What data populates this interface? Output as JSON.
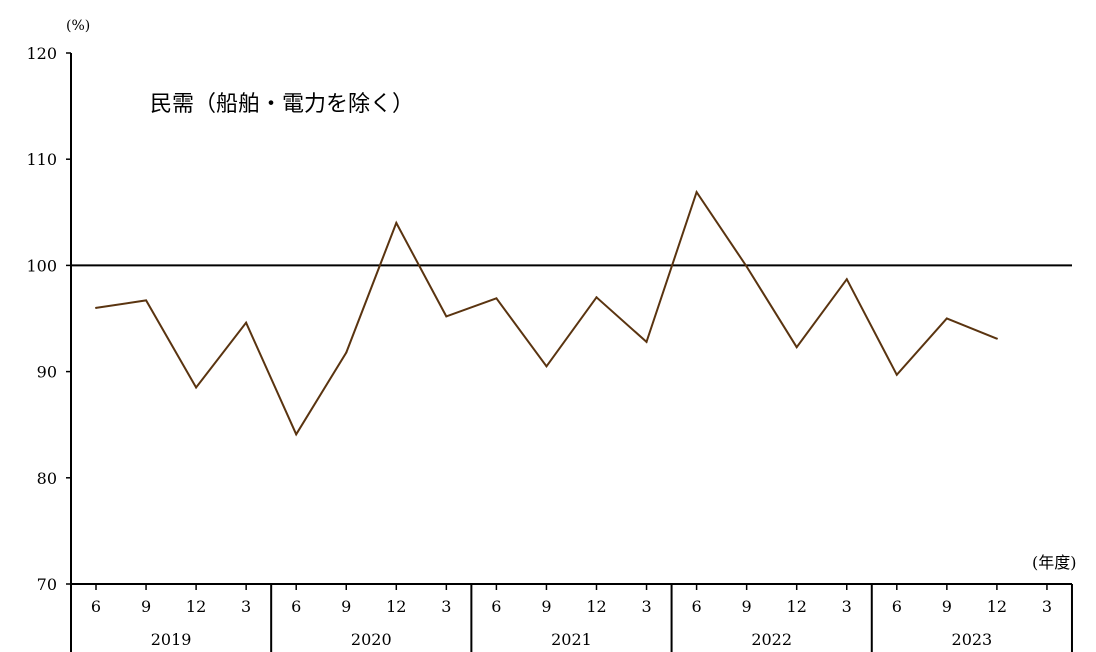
{
  "chart_data": {
    "type": "line",
    "title": "民需（船舶・電力を除く）",
    "y_unit_label": "(%)",
    "x_unit_label": "(年度)",
    "ylim": [
      70,
      120
    ],
    "y_ticks": [
      70,
      80,
      90,
      100,
      110,
      120
    ],
    "reference_line": 100,
    "years": [
      "2019",
      "2020",
      "2021",
      "2022",
      "2023"
    ],
    "months": [
      "6",
      "9",
      "12",
      "3"
    ],
    "values": [
      96.0,
      96.7,
      88.5,
      94.6,
      84.1,
      91.8,
      104.0,
      95.2,
      96.9,
      90.5,
      97.0,
      92.8,
      106.9,
      99.9,
      92.3,
      98.7,
      89.7,
      95.0,
      93.1
    ],
    "colors": {
      "line": "#5a3410",
      "axis": "#000000",
      "reference": "#000000"
    }
  }
}
